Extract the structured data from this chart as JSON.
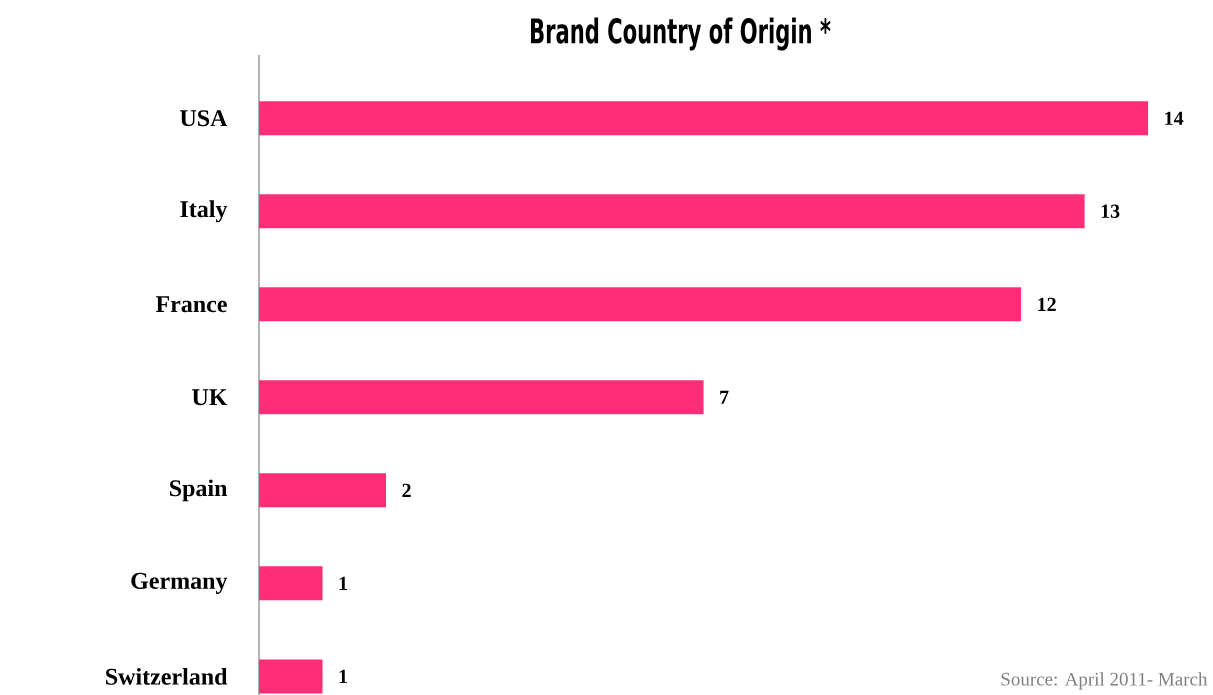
{
  "chart_data": {
    "type": "bar",
    "orientation": "horizontal",
    "title": "Brand Country of Origin *",
    "categories": [
      "USA",
      "Italy",
      "France",
      "UK",
      "Spain",
      "Germany",
      "Switzerland"
    ],
    "values": [
      14,
      13,
      12,
      7,
      2,
      1,
      1
    ],
    "color": "#ff2d78",
    "data_labels": true,
    "annotations": [
      "Source: April 2011- March"
    ]
  }
}
